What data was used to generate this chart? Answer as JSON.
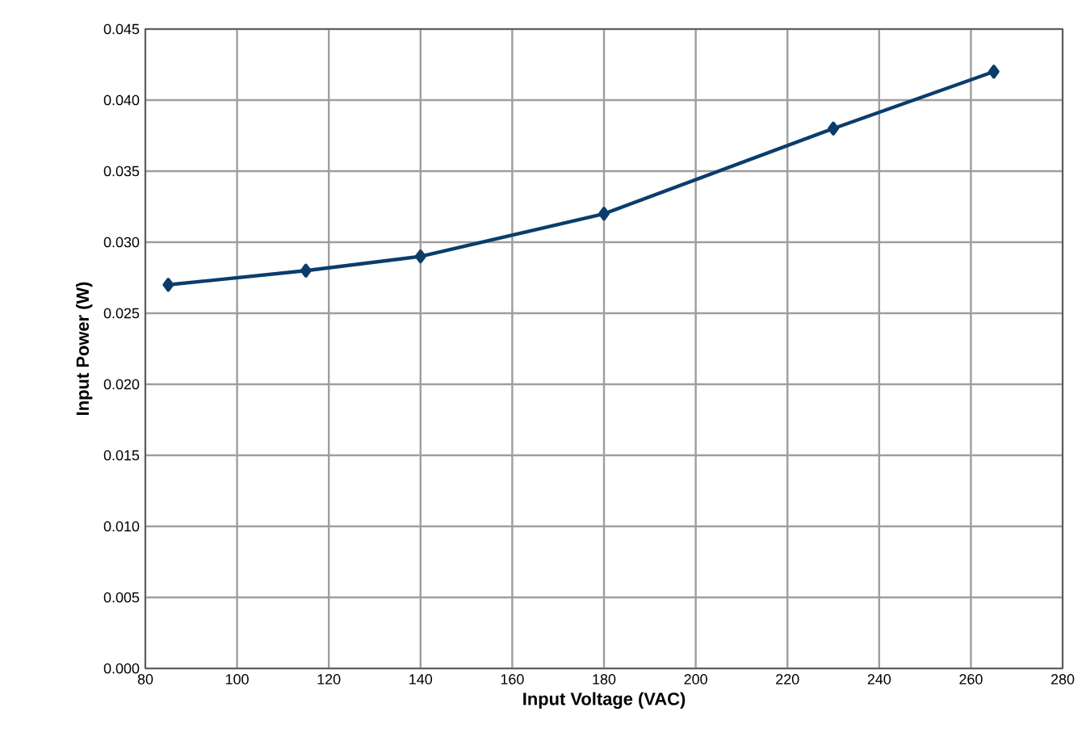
{
  "chart_data": {
    "type": "line",
    "xlabel": "Input Voltage (VAC)",
    "ylabel": "Input Power (W)",
    "x": [
      85,
      115,
      140,
      180,
      230,
      265
    ],
    "series": [
      {
        "color": "#0b3d6b",
        "values": [
          0.027,
          0.028,
          0.029,
          0.032,
          0.038,
          0.042
        ]
      }
    ],
    "xlim": [
      80,
      280
    ],
    "xticks": [
      80,
      100,
      120,
      140,
      160,
      180,
      200,
      220,
      240,
      260,
      280
    ],
    "ylim": [
      0,
      0.045
    ],
    "yticks": [
      {
        "value": 0,
        "label": "0.000"
      },
      {
        "value": 0.005,
        "label": "0.005"
      },
      {
        "value": 0.01,
        "label": "0.010"
      },
      {
        "value": 0.015,
        "label": "0.015"
      },
      {
        "value": 0.02,
        "label": "0.020"
      },
      {
        "value": 0.025,
        "label": "0.025"
      },
      {
        "value": 0.03,
        "label": "0.030"
      },
      {
        "value": 0.035,
        "label": "0.035"
      },
      {
        "value": 0.04,
        "label": "0.040"
      },
      {
        "value": 0.045,
        "label": "0.045"
      }
    ],
    "grid": true,
    "marker": "diamond",
    "line_style": "solid"
  }
}
